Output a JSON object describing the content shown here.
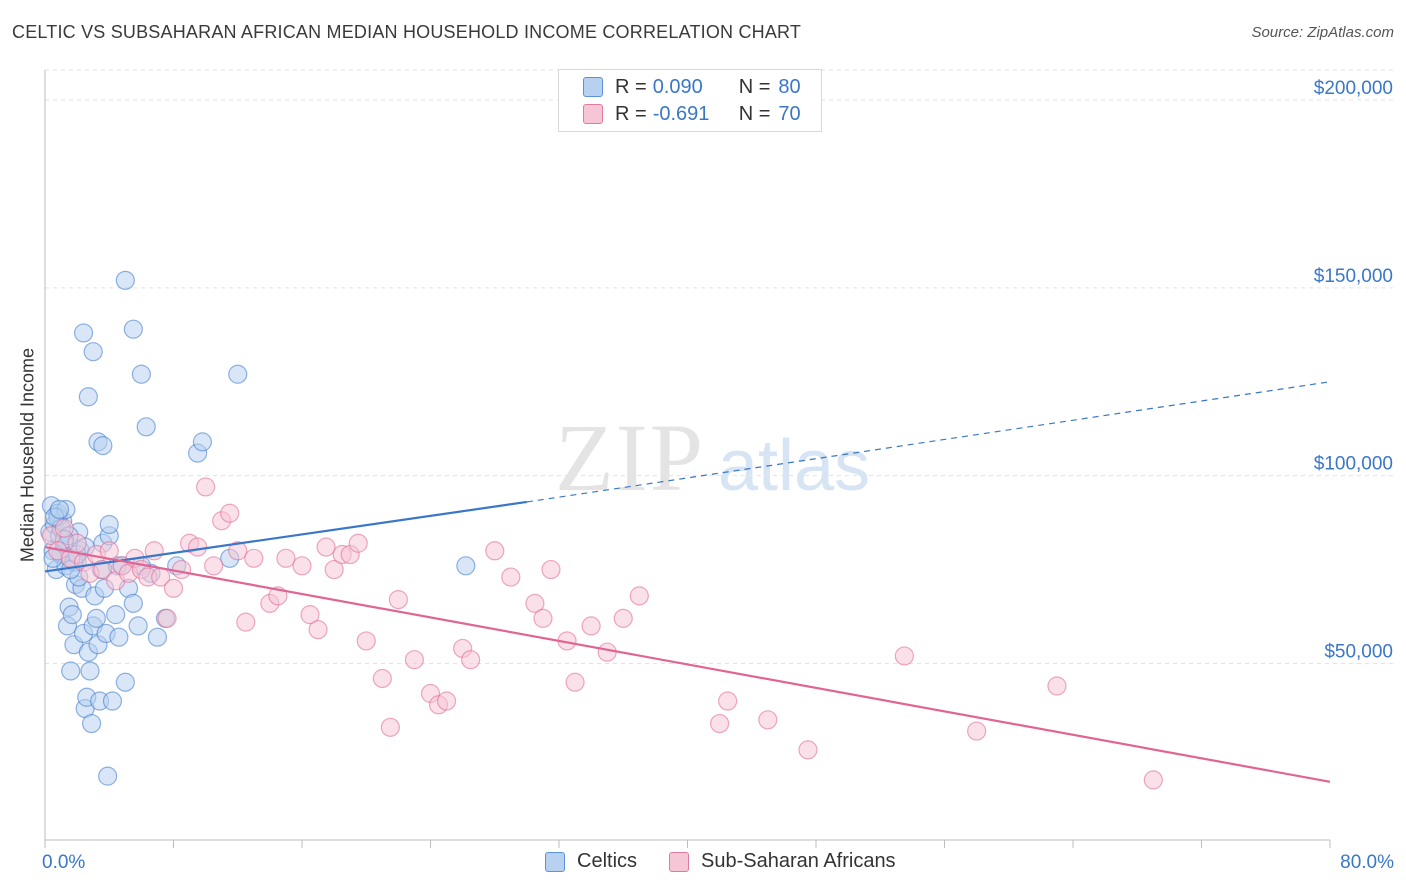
{
  "title": "CELTIC VS SUBSAHARAN AFRICAN MEDIAN HOUSEHOLD INCOME CORRELATION CHART",
  "source": "Source: ZipAtlas.com",
  "watermark": {
    "zip": "ZIP",
    "atlas": "atlas"
  },
  "legend_top": [
    {
      "label": "R =",
      "r": "0.090",
      "n_label": "N =",
      "n": "80",
      "color": "#5b93d8",
      "fill": "#b8d1f1"
    },
    {
      "label": "R =",
      "r": "-0.691",
      "n_label": "N =",
      "n": "70",
      "color": "#e07aa0",
      "fill": "#f6c6d6"
    }
  ],
  "legend_bottom": [
    {
      "label": "Celtics",
      "color": "#5b93d8",
      "fill": "#b8d1f1"
    },
    {
      "label": "Sub-Saharan Africans",
      "color": "#e07aa0",
      "fill": "#f6c6d6"
    }
  ],
  "chart_data": {
    "type": "scatter",
    "title": "CELTIC VS SUBSAHARAN AFRICAN MEDIAN HOUSEHOLD INCOME CORRELATION CHART",
    "xlabel": "",
    "ylabel": "Median Household Income",
    "x_tick_labels": [
      "0.0%",
      "80.0%"
    ],
    "y_tick_labels": [
      "$50,000",
      "$100,000",
      "$150,000",
      "$200,000"
    ],
    "y_ticks": [
      50000,
      100000,
      150000,
      200000
    ],
    "xlim": [
      0,
      80
    ],
    "ylim": [
      3000,
      208000
    ],
    "grid": true,
    "legend_placement": "top-center",
    "series": [
      {
        "name": "Celtics",
        "color": "#3a77c8",
        "point_fill": "#b8d1f1",
        "r": 0.09,
        "n": 80,
        "trend": {
          "x0": 0.0,
          "y0": 74500,
          "x1": 30.0,
          "y1": 93000,
          "dashed_to_x": 80.0,
          "dashed_to_y": 125000
        },
        "x": [
          0.3,
          0.4,
          0.5,
          0.6,
          0.7,
          0.8,
          0.9,
          1.0,
          1.1,
          1.2,
          1.3,
          1.4,
          1.5,
          1.6,
          1.7,
          1.8,
          1.9,
          2.0,
          2.1,
          2.2,
          2.3,
          2.4,
          2.5,
          2.6,
          2.7,
          2.8,
          2.9,
          3.0,
          3.1,
          3.2,
          3.3,
          3.4,
          3.5,
          3.6,
          3.7,
          3.8,
          3.9,
          4.0,
          4.2,
          4.4,
          4.6,
          4.8,
          5.0,
          5.2,
          5.5,
          5.8,
          6.0,
          6.3,
          6.6,
          7.0,
          7.5,
          8.2,
          9.5,
          9.8,
          11.5,
          12.0,
          0.5,
          0.8,
          1.0,
          1.3,
          1.5,
          1.8,
          2.1,
          2.4,
          2.7,
          3.0,
          3.3,
          3.6,
          4.0,
          4.5,
          5.0,
          5.5,
          6.0,
          26.2,
          0.6,
          0.9,
          1.2,
          1.6,
          2.0,
          2.5
        ],
        "y": [
          85000,
          92000,
          80000,
          87000,
          75000,
          90000,
          84000,
          79000,
          88000,
          82000,
          76000,
          60000,
          65000,
          48000,
          63000,
          55000,
          71000,
          77000,
          85000,
          80000,
          70000,
          58000,
          38000,
          41000,
          53000,
          48000,
          34000,
          60000,
          68000,
          62000,
          55000,
          40000,
          75000,
          82000,
          70000,
          58000,
          20000,
          84000,
          40000,
          63000,
          57000,
          76000,
          45000,
          70000,
          66000,
          60000,
          76000,
          113000,
          74000,
          57000,
          62000,
          76000,
          106000,
          109000,
          78000,
          127000,
          78000,
          89000,
          86000,
          91000,
          84000,
          77000,
          73000,
          138000,
          121000,
          133000,
          109000,
          108000,
          87000,
          76000,
          152000,
          139000,
          127000,
          76000,
          89000,
          91000,
          83000,
          75000,
          79000,
          81000
        ]
      },
      {
        "name": "Sub-Saharan Africans",
        "color": "#e06593",
        "point_fill": "#f6c6d6",
        "r": -0.691,
        "n": 70,
        "trend": {
          "x0": 0.0,
          "y0": 81000,
          "x1": 80.0,
          "y1": 18500
        },
        "x": [
          0.4,
          0.8,
          1.2,
          1.6,
          2.0,
          2.4,
          2.8,
          3.2,
          3.6,
          4.0,
          4.4,
          4.8,
          5.2,
          5.6,
          6.0,
          6.4,
          6.8,
          7.2,
          7.6,
          8.0,
          8.5,
          9.0,
          9.5,
          10.0,
          10.5,
          11.0,
          11.5,
          12.0,
          12.5,
          13.0,
          14.0,
          14.5,
          15.0,
          16.0,
          16.5,
          17.0,
          17.5,
          18.0,
          18.5,
          19.0,
          19.5,
          20.0,
          21.0,
          21.5,
          22.0,
          23.0,
          24.0,
          24.5,
          25.0,
          26.0,
          26.5,
          28.0,
          29.0,
          30.5,
          31.0,
          31.5,
          32.5,
          33.0,
          34.0,
          35.0,
          36.0,
          37.0,
          42.0,
          42.5,
          45.0,
          47.5,
          53.5,
          58.0,
          63.0,
          69.0
        ],
        "y": [
          84000,
          80000,
          86000,
          78000,
          82000,
          77000,
          74000,
          79000,
          75000,
          80000,
          72000,
          76000,
          74000,
          78000,
          75000,
          73000,
          80000,
          73000,
          62000,
          70000,
          75000,
          82000,
          81000,
          97000,
          76000,
          88000,
          90000,
          80000,
          61000,
          78000,
          66000,
          68000,
          78000,
          76000,
          63000,
          59000,
          81000,
          75000,
          79000,
          79000,
          82000,
          56000,
          46000,
          33000,
          67000,
          51000,
          42000,
          39000,
          40000,
          54000,
          51000,
          80000,
          73000,
          66000,
          62000,
          75000,
          56000,
          45000,
          60000,
          53000,
          62000,
          68000,
          34000,
          40000,
          35000,
          27000,
          52000,
          32000,
          44000,
          19000
        ]
      }
    ]
  }
}
